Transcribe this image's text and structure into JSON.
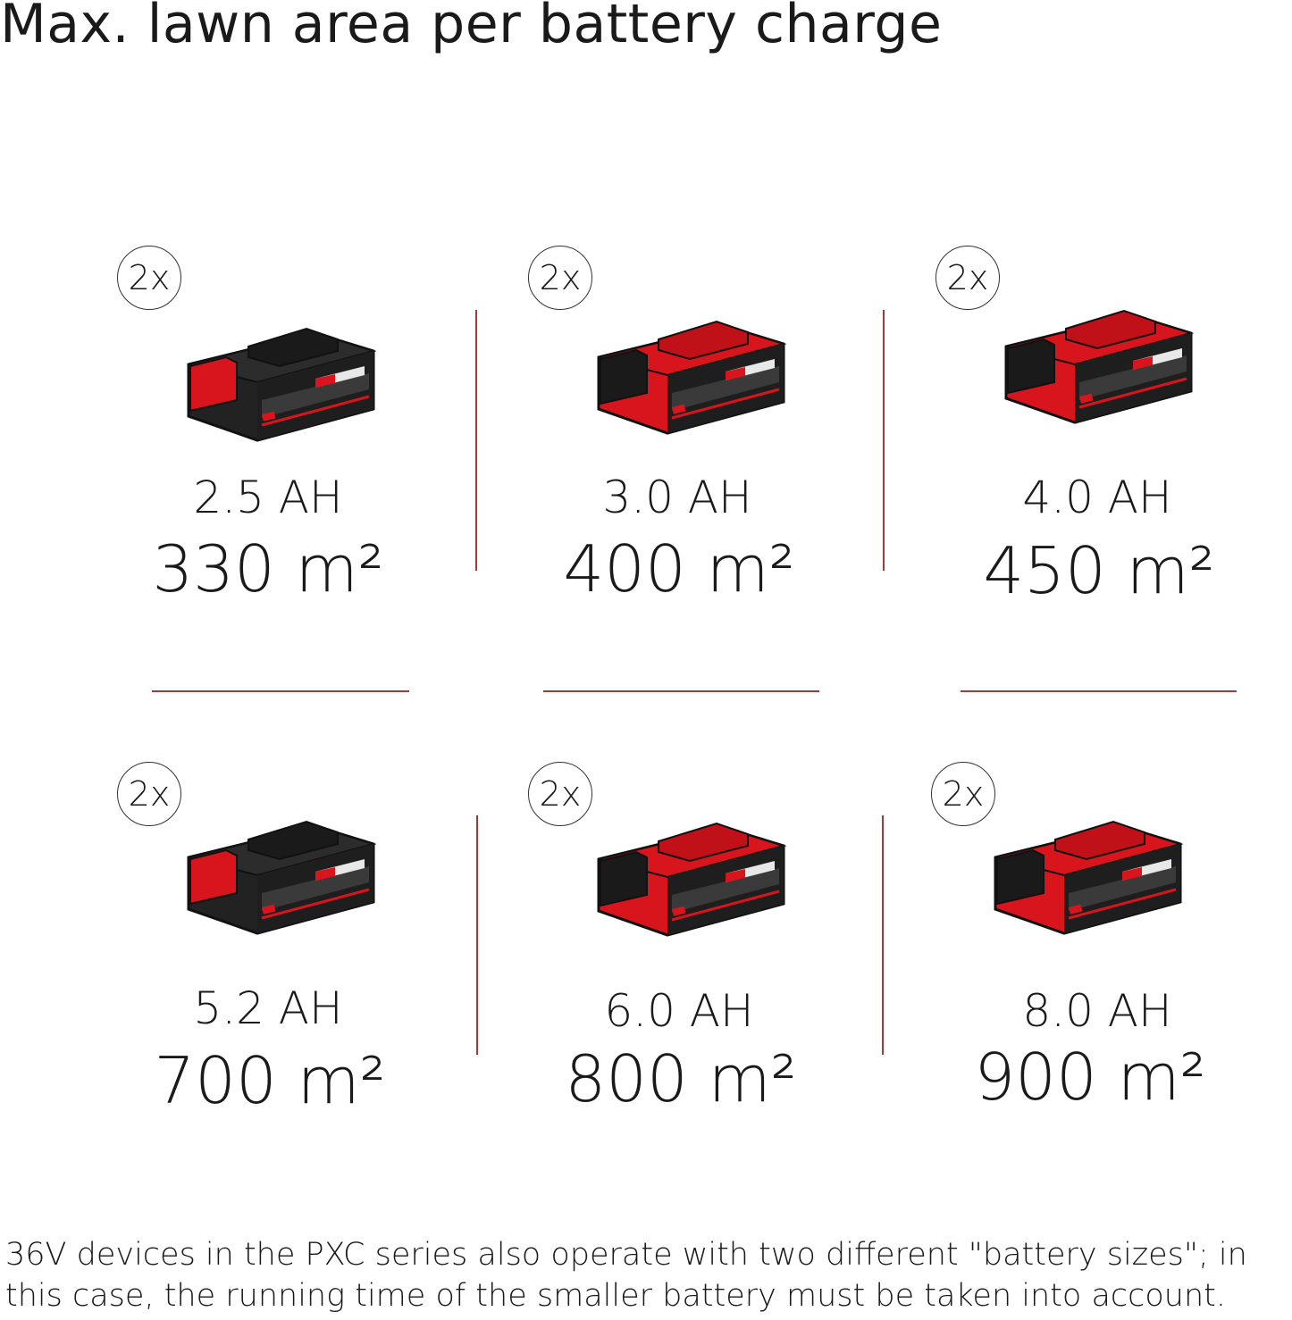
{
  "title": "Max. lawn area per battery charge",
  "colors": {
    "accent": "#d8141c",
    "battery_dark": "#222222",
    "divider": "#a33a3a"
  },
  "cells": [
    {
      "badge": "2x",
      "capacity": "2.5 AH",
      "area": "330 m²",
      "battery_style": "black-body",
      "icon": "battery-pack-icon"
    },
    {
      "badge": "2x",
      "capacity": "3.0 AH",
      "area": "400 m²",
      "battery_style": "red-body",
      "icon": "battery-pack-icon"
    },
    {
      "badge": "2x",
      "capacity": "4.0 AH",
      "area": "450 m²",
      "battery_style": "red-body",
      "icon": "battery-pack-icon"
    },
    {
      "badge": "2x",
      "capacity": "5.2 AH",
      "area": "700 m²",
      "battery_style": "black-body",
      "icon": "battery-pack-icon"
    },
    {
      "badge": "2x",
      "capacity": "6.0 AH",
      "area": "800 m²",
      "battery_style": "red-body",
      "icon": "battery-pack-icon"
    },
    {
      "badge": "2x",
      "capacity": "8.0 AH",
      "area": "900 m²",
      "battery_style": "red-body",
      "icon": "battery-pack-icon"
    }
  ],
  "footer": "36V devices in the PXC series also operate with two different \"battery sizes\"; in this case, the running time of the smaller battery must be taken into account."
}
